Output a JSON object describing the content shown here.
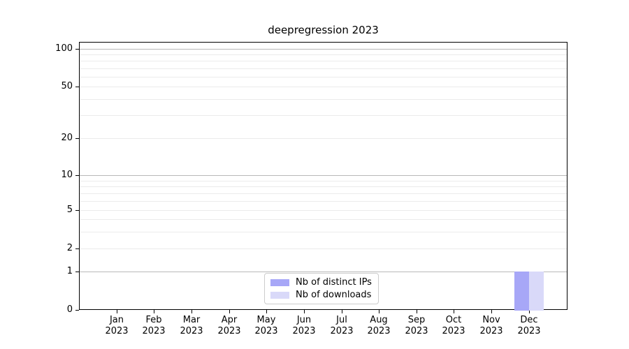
{
  "chart_data": {
    "type": "bar",
    "title": "deepregression 2023",
    "categories": [
      {
        "month": "Jan",
        "year": "2023"
      },
      {
        "month": "Feb",
        "year": "2023"
      },
      {
        "month": "Mar",
        "year": "2023"
      },
      {
        "month": "Apr",
        "year": "2023"
      },
      {
        "month": "May",
        "year": "2023"
      },
      {
        "month": "Jun",
        "year": "2023"
      },
      {
        "month": "Jul",
        "year": "2023"
      },
      {
        "month": "Aug",
        "year": "2023"
      },
      {
        "month": "Sep",
        "year": "2023"
      },
      {
        "month": "Oct",
        "year": "2023"
      },
      {
        "month": "Nov",
        "year": "2023"
      },
      {
        "month": "Dec",
        "year": "2023"
      }
    ],
    "series": [
      {
        "name": "Nb of distinct IPs",
        "color": "#a7a7f7",
        "values": [
          0,
          0,
          0,
          0,
          0,
          0,
          0,
          0,
          0,
          0,
          0,
          1
        ]
      },
      {
        "name": "Nb of downloads",
        "color": "#d9d9f9",
        "values": [
          0,
          0,
          0,
          0,
          0,
          0,
          0,
          0,
          0,
          0,
          0,
          1
        ]
      }
    ],
    "xlabel": "",
    "ylabel": "",
    "y_ticks": [
      0,
      1,
      2,
      5,
      10,
      20,
      50,
      100
    ],
    "yscale": "log above 1, linear segment from 0 to 1",
    "ylim": [
      0,
      112
    ],
    "grid": "horizontal, minor log lines faint, major lines at 1/10/100 darker",
    "legend_position": "lower center",
    "colors": {
      "axis": "#000000",
      "grid_major": "#b8b8b8",
      "grid_minor": "#ebebeb",
      "legend_border": "#cccccc"
    }
  }
}
